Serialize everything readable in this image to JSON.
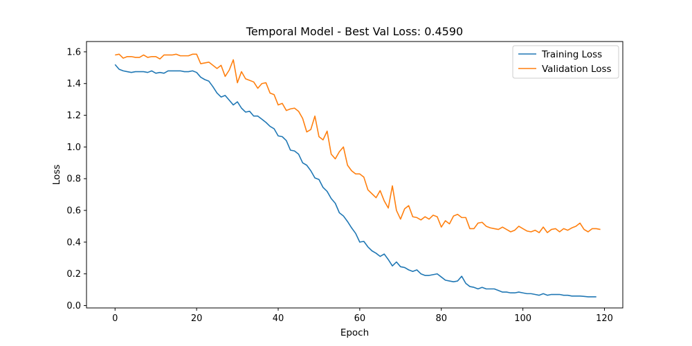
{
  "chart_data": {
    "type": "line",
    "title": "Temporal Model - Best Val Loss: 0.4590",
    "xlabel": "Epoch",
    "ylabel": "Loss",
    "xlim": [
      -7,
      124.5
    ],
    "ylim": [
      -0.015,
      1.665
    ],
    "xticks": [
      0,
      20,
      40,
      60,
      80,
      100,
      120
    ],
    "yticks": [
      0.0,
      0.2,
      0.4,
      0.6,
      0.8,
      1.0,
      1.2,
      1.4,
      1.6
    ],
    "ytick_labels": [
      "0.0",
      "0.2",
      "0.4",
      "0.6",
      "0.8",
      "1.0",
      "1.2",
      "1.4",
      "1.6"
    ],
    "grid": false,
    "legend_position": "top-right",
    "series": [
      {
        "name": "Training Loss",
        "color": "#1f77b4",
        "values": [
          1.52,
          1.49,
          1.48,
          1.475,
          1.47,
          1.475,
          1.475,
          1.475,
          1.47,
          1.48,
          1.465,
          1.47,
          1.465,
          1.48,
          1.48,
          1.48,
          1.48,
          1.475,
          1.475,
          1.48,
          1.47,
          1.44,
          1.425,
          1.415,
          1.38,
          1.34,
          1.315,
          1.325,
          1.295,
          1.265,
          1.285,
          1.245,
          1.22,
          1.225,
          1.195,
          1.195,
          1.175,
          1.155,
          1.13,
          1.115,
          1.07,
          1.065,
          1.04,
          0.98,
          0.975,
          0.955,
          0.9,
          0.885,
          0.85,
          0.805,
          0.795,
          0.745,
          0.72,
          0.675,
          0.645,
          0.585,
          0.565,
          0.53,
          0.49,
          0.455,
          0.4,
          0.405,
          0.37,
          0.345,
          0.33,
          0.31,
          0.325,
          0.29,
          0.25,
          0.275,
          0.245,
          0.24,
          0.225,
          0.215,
          0.225,
          0.2,
          0.19,
          0.19,
          0.195,
          0.2,
          0.18,
          0.16,
          0.155,
          0.15,
          0.155,
          0.185,
          0.14,
          0.12,
          0.115,
          0.105,
          0.115,
          0.105,
          0.105,
          0.105,
          0.095,
          0.085,
          0.085,
          0.08,
          0.08,
          0.085,
          0.08,
          0.075,
          0.075,
          0.07,
          0.065,
          0.075,
          0.065,
          0.07,
          0.07,
          0.07,
          0.065,
          0.065,
          0.06,
          0.06,
          0.06,
          0.058,
          0.055,
          0.055,
          0.055
        ]
      },
      {
        "name": "Validation Loss",
        "color": "#ff7f0e",
        "values": [
          1.58,
          1.585,
          1.56,
          1.57,
          1.57,
          1.565,
          1.565,
          1.58,
          1.565,
          1.57,
          1.57,
          1.555,
          1.58,
          1.58,
          1.58,
          1.585,
          1.575,
          1.575,
          1.575,
          1.585,
          1.585,
          1.525,
          1.53,
          1.535,
          1.515,
          1.495,
          1.515,
          1.445,
          1.485,
          1.55,
          1.405,
          1.475,
          1.43,
          1.42,
          1.41,
          1.37,
          1.4,
          1.405,
          1.34,
          1.33,
          1.265,
          1.275,
          1.23,
          1.24,
          1.245,
          1.225,
          1.18,
          1.095,
          1.11,
          1.195,
          1.065,
          1.045,
          1.1,
          0.955,
          0.925,
          0.97,
          1.0,
          0.885,
          0.85,
          0.83,
          0.83,
          0.81,
          0.73,
          0.705,
          0.68,
          0.725,
          0.66,
          0.615,
          0.755,
          0.6,
          0.545,
          0.61,
          0.63,
          0.56,
          0.555,
          0.54,
          0.56,
          0.545,
          0.57,
          0.56,
          0.495,
          0.535,
          0.515,
          0.565,
          0.575,
          0.555,
          0.555,
          0.485,
          0.485,
          0.52,
          0.525,
          0.5,
          0.49,
          0.485,
          0.48,
          0.495,
          0.48,
          0.465,
          0.475,
          0.5,
          0.485,
          0.47,
          0.465,
          0.475,
          0.46,
          0.495,
          0.46,
          0.48,
          0.485,
          0.465,
          0.485,
          0.475,
          0.49,
          0.5,
          0.52,
          0.48,
          0.465,
          0.485,
          0.485,
          0.48
        ]
      }
    ]
  }
}
